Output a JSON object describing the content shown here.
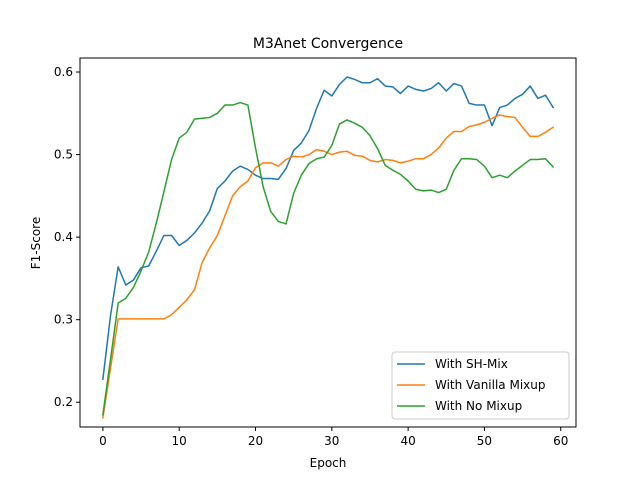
{
  "chart_data": {
    "type": "line",
    "title": "M3Anet Convergence",
    "xlabel": "Epoch",
    "ylabel": "F1-Score",
    "xlim": [
      -3,
      62
    ],
    "ylim": [
      0.17,
      0.617
    ],
    "xticks": [
      0,
      10,
      20,
      30,
      40,
      50,
      60
    ],
    "yticks": [
      0.2,
      0.3,
      0.4,
      0.5,
      0.6
    ],
    "grid": false,
    "legend_position": "lower-right",
    "series": [
      {
        "name": "With SH-Mix",
        "color": "#1f77b4",
        "values": [
          0.228,
          0.305,
          0.364,
          0.342,
          0.348,
          0.363,
          0.365,
          0.383,
          0.402,
          0.402,
          0.39,
          0.396,
          0.405,
          0.417,
          0.432,
          0.459,
          0.468,
          0.48,
          0.486,
          0.482,
          0.475,
          0.471,
          0.471,
          0.47,
          0.483,
          0.505,
          0.514,
          0.529,
          0.556,
          0.578,
          0.571,
          0.585,
          0.594,
          0.591,
          0.587,
          0.587,
          0.592,
          0.583,
          0.582,
          0.574,
          0.583,
          0.579,
          0.577,
          0.58,
          0.587,
          0.577,
          0.586,
          0.583,
          0.562,
          0.56,
          0.56,
          0.535,
          0.557,
          0.56,
          0.568,
          0.573,
          0.583,
          0.568,
          0.572,
          0.557
        ]
      },
      {
        "name": "With Vanilla Mixup",
        "color": "#ff7f0e",
        "values": [
          0.181,
          0.241,
          0.301,
          0.301,
          0.301,
          0.301,
          0.301,
          0.301,
          0.301,
          0.306,
          0.315,
          0.324,
          0.336,
          0.369,
          0.387,
          0.402,
          0.426,
          0.45,
          0.461,
          0.468,
          0.484,
          0.49,
          0.49,
          0.486,
          0.494,
          0.498,
          0.497,
          0.5,
          0.506,
          0.504,
          0.5,
          0.503,
          0.504,
          0.499,
          0.498,
          0.493,
          0.491,
          0.494,
          0.493,
          0.49,
          0.492,
          0.495,
          0.495,
          0.5,
          0.508,
          0.52,
          0.528,
          0.528,
          0.534,
          0.536,
          0.539,
          0.544,
          0.548,
          0.546,
          0.545,
          0.533,
          0.522,
          0.522,
          0.527,
          0.533
        ]
      },
      {
        "name": "With No Mixup",
        "color": "#2ca02c",
        "values": [
          0.185,
          0.252,
          0.32,
          0.326,
          0.339,
          0.359,
          0.382,
          0.417,
          0.455,
          0.494,
          0.52,
          0.527,
          0.543,
          0.544,
          0.545,
          0.55,
          0.56,
          0.56,
          0.563,
          0.56,
          0.508,
          0.461,
          0.431,
          0.419,
          0.416,
          0.453,
          0.475,
          0.489,
          0.495,
          0.497,
          0.511,
          0.537,
          0.542,
          0.538,
          0.533,
          0.523,
          0.507,
          0.487,
          0.481,
          0.476,
          0.468,
          0.458,
          0.456,
          0.457,
          0.454,
          0.458,
          0.481,
          0.495,
          0.495,
          0.494,
          0.486,
          0.472,
          0.475,
          0.472,
          0.48,
          0.487,
          0.494,
          0.494,
          0.495,
          0.485
        ]
      }
    ]
  }
}
